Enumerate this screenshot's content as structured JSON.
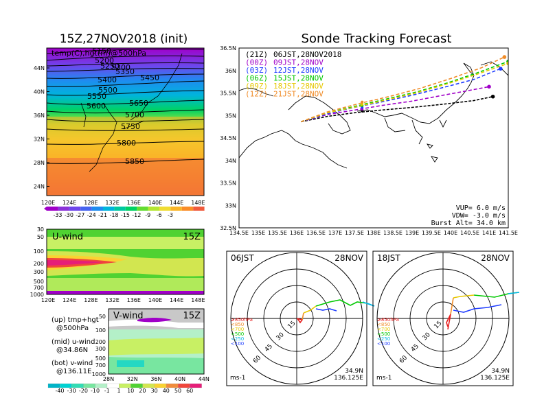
{
  "left_top": {
    "title": "15Z,27NOV2018 (init)",
    "subtitle": "temp(C),hgt(m)@500hPa",
    "lat_ticks": [
      "44N",
      "40N",
      "36N",
      "32N",
      "28N",
      "24N"
    ],
    "lon_ticks": [
      "120E",
      "124E",
      "128E",
      "132E",
      "136E",
      "140E",
      "144E",
      "148E"
    ],
    "contour_labels": [
      "5150",
      "5200",
      "5250",
      "5300",
      "5350",
      "5400",
      "5450",
      "5500",
      "5550",
      "5600",
      "5650",
      "5700",
      "5750",
      "5800",
      "5850"
    ],
    "colorbar_labels": [
      "-33",
      "-30",
      "-27",
      "-24",
      "-21",
      "-18",
      "-15",
      "-12",
      "-9",
      "-6",
      "-3"
    ],
    "colorbar_colors": [
      "#a000c8",
      "#8a32d8",
      "#6e46ec",
      "#4664f0",
      "#1e8cf0",
      "#00b4dc",
      "#00c8a0",
      "#00d264",
      "#64dc32",
      "#b4e632",
      "#f0dc32",
      "#fab428",
      "#fa8c28",
      "#f05a3c"
    ]
  },
  "uwind": {
    "title": "U-wind",
    "time": "15Z",
    "p_ticks": [
      "30",
      "50",
      "100",
      "200",
      "300",
      "500",
      "700",
      "1000"
    ],
    "lon_ticks": [
      "120E",
      "124E",
      "128E",
      "132E",
      "136E",
      "140E",
      "144E",
      "148E"
    ]
  },
  "vwind": {
    "title": "V-wind",
    "time": "15Z",
    "p_ticks": [
      "50",
      "100",
      "200",
      "300",
      "500",
      "700",
      "1000"
    ],
    "lat_ticks": [
      "28N",
      "32N",
      "36N",
      "40N",
      "44N"
    ]
  },
  "legend_notes": {
    "up_a": "(up) tmp+hgt",
    "up_b": "@500hPa",
    "mid_a": "(mid) u-wind",
    "mid_b": "@34.86N",
    "bot_a": "(bot) v-wind",
    "bot_b": "@136.11E"
  },
  "wind_colorbar_labels": [
    "-40",
    "-30",
    "-20",
    "-10",
    "-1",
    "1",
    "10",
    "20",
    "30",
    "40",
    "50",
    "60"
  ],
  "wind_colorbar_colors": [
    "#00b4c8",
    "#00d2d2",
    "#32dcb4",
    "#78e6a0",
    "#b4f0c8",
    "#ffffff",
    "#c8f064",
    "#50d232",
    "#d2e650",
    "#fad232",
    "#f08c3c",
    "#f0463c",
    "#e61e78"
  ],
  "right_top": {
    "title": "Sonde Tracking Forecast",
    "lat_ticks": [
      "36.5N",
      "36N",
      "35.5N",
      "35N",
      "34.5N",
      "34N",
      "33.5N",
      "33N",
      "32.5N"
    ],
    "lon_ticks": [
      "134.5E",
      "135E",
      "135.5E",
      "136E",
      "136.5E",
      "137E",
      "137.5E",
      "138E",
      "138.5E",
      "139E",
      "139.5E",
      "140E",
      "140.5E",
      "141E",
      "141.5E"
    ],
    "legend": [
      {
        "code": "(21Z)",
        "time": "06JST,28NOV2018",
        "color": "#000000"
      },
      {
        "code": "(00Z)",
        "time": "09JST,28NOV",
        "color": "#a000c8"
      },
      {
        "code": "(03Z)",
        "time": "12JST,28NOV",
        "color": "#1e3cff"
      },
      {
        "code": "(06Z)",
        "time": "15JST,28NOV",
        "color": "#00c800"
      },
      {
        "code": "(09Z)",
        "time": "18JST,28NOV",
        "color": "#e6c800"
      },
      {
        "code": "(12Z)",
        "time": "21JST,28NOV",
        "color": "#f08c28"
      }
    ],
    "vup": "VUP=  6.0 m/s",
    "vdw": "VDW= -3.0 m/s",
    "burst": "Burst Alt= 34.0 km"
  },
  "chart_data": {
    "type": "line",
    "title": "Sonde Tracking Forecast",
    "xlabel": "",
    "ylabel": "",
    "xlim": [
      134.5,
      141.5
    ],
    "ylim": [
      32.5,
      36.5
    ],
    "series": [
      {
        "name": "06JST,28NOV2018",
        "x": [
          136.11,
          136.8,
          137.5,
          138.2,
          139.0,
          139.8,
          140.6,
          141.1
        ],
        "y": [
          34.86,
          34.98,
          35.06,
          35.12,
          35.18,
          35.25,
          35.33,
          35.42
        ]
      },
      {
        "name": "09JST,28NOV",
        "x": [
          136.11,
          136.8,
          137.5,
          138.2,
          139.0,
          139.8,
          140.5,
          141.0
        ],
        "y": [
          34.86,
          35.02,
          35.12,
          35.22,
          35.32,
          35.45,
          35.56,
          35.64
        ]
      },
      {
        "name": "12JST,28NOV",
        "x": [
          136.11,
          136.8,
          137.5,
          138.2,
          139.0,
          139.8,
          140.6,
          141.3
        ],
        "y": [
          34.86,
          35.04,
          35.18,
          35.3,
          35.45,
          35.62,
          35.8,
          36.04
        ]
      },
      {
        "name": "15JST,28NOV",
        "x": [
          136.11,
          136.8,
          137.6,
          138.3,
          139.1,
          139.9,
          140.7,
          141.5
        ],
        "y": [
          34.86,
          35.06,
          35.22,
          35.36,
          35.52,
          35.72,
          35.95,
          36.2
        ]
      },
      {
        "name": "18JST,28NOV",
        "x": [
          136.11,
          136.8,
          137.6,
          138.3,
          139.1,
          139.9,
          140.7,
          141.5
        ],
        "y": [
          34.86,
          35.06,
          35.2,
          35.34,
          35.5,
          35.7,
          35.92,
          36.16
        ]
      },
      {
        "name": "21JST,28NOV",
        "x": [
          136.11,
          136.8,
          137.6,
          138.4,
          139.2,
          140.0,
          140.8,
          141.4
        ],
        "y": [
          34.86,
          35.08,
          35.26,
          35.42,
          35.6,
          35.82,
          36.06,
          36.3
        ]
      }
    ]
  },
  "hodo_1": {
    "time": "06JST",
    "date": "28NOV",
    "lat": "34.9N",
    "lon": "136.125E",
    "unit": "ms-1",
    "ring_labels": [
      "15",
      "30",
      "45",
      "60"
    ]
  },
  "hodo_2": {
    "time": "18JST",
    "date": "28NOV",
    "lat": "34.9N",
    "lon": "136.125E",
    "unit": "ms-1",
    "ring_labels": [
      "15",
      "30",
      "45",
      "60"
    ]
  },
  "hodo_legend": [
    {
      "text": "≥850hPa",
      "color": "#e61e1e"
    },
    {
      "text": "<850",
      "color": "#f08c28"
    },
    {
      "text": "<700",
      "color": "#e6c800"
    },
    {
      "text": "<500",
      "color": "#00c800"
    },
    {
      "text": "<250",
      "color": "#00b4e6"
    },
    {
      "text": "<100",
      "color": "#1e3cff"
    }
  ]
}
